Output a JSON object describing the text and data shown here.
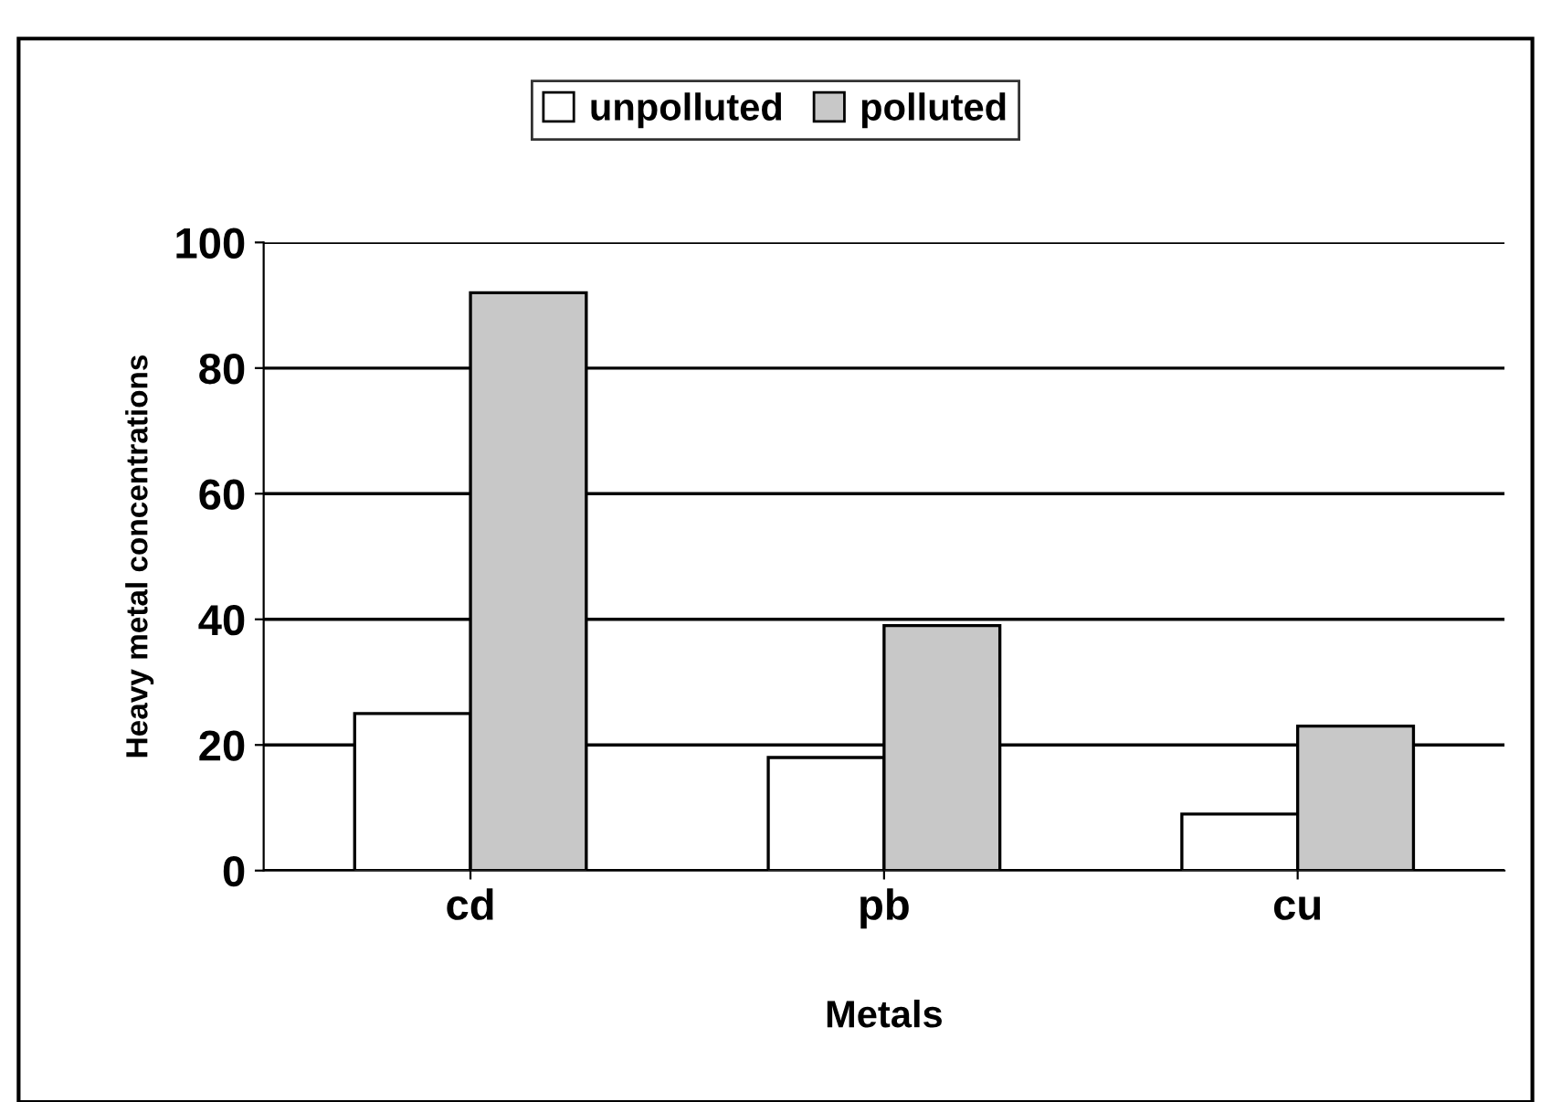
{
  "chart_data": {
    "type": "bar",
    "xlabel": "Metals",
    "ylabel": "Heavy metal concentrations",
    "categories": [
      "cd",
      "pb",
      "cu"
    ],
    "series": [
      {
        "name": "unpolluted",
        "color": "#ffffff",
        "values": [
          25,
          18,
          9
        ]
      },
      {
        "name": "polluted",
        "color": "#c8c8c8",
        "values": [
          92,
          39,
          23
        ]
      }
    ],
    "ylim": [
      0,
      100
    ],
    "yticks": [
      0,
      20,
      40,
      60,
      80,
      100
    ],
    "grid": "y",
    "legend": "top"
  }
}
